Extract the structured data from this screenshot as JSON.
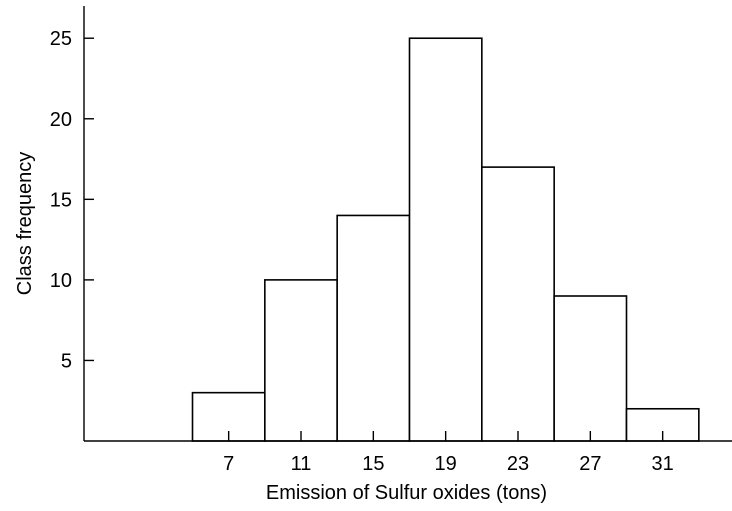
{
  "chart_data": {
    "type": "bar",
    "subtype": "histogram",
    "title": "",
    "xlabel": "Emission of Sulfur oxides (tons)",
    "ylabel": "Class frequency",
    "categories": [
      "7",
      "11",
      "15",
      "19",
      "23",
      "27",
      "31"
    ],
    "bin_centers": [
      7,
      11,
      15,
      19,
      23,
      27,
      31
    ],
    "bin_width": 4,
    "values": [
      3,
      10,
      14,
      25,
      17,
      9,
      2
    ],
    "xlim": [
      -1,
      35
    ],
    "ylim": [
      0,
      27
    ],
    "yticks": [
      5,
      10,
      15,
      20,
      25
    ],
    "xticks": [
      7,
      11,
      15,
      19,
      23,
      27,
      31
    ],
    "grid": false,
    "legend": "none",
    "colors": {
      "bar_fill": "#ffffff",
      "bar_stroke": "#000000",
      "axis": "#000000"
    }
  }
}
